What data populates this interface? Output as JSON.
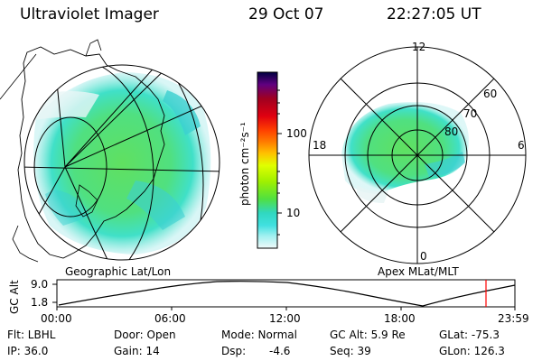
{
  "header": {
    "title": "Ultraviolet Imager",
    "date": "29 Oct 07",
    "time": "22:27:05 UT"
  },
  "maps": {
    "left_caption": "Geographic Lat/Lon",
    "right_caption": "Apex MLat/MLT",
    "polar_mlt_labels": [
      "12",
      "18",
      "6",
      "0"
    ],
    "polar_lat_labels": [
      "60",
      "70",
      "80"
    ]
  },
  "colorbar": {
    "unit_label": "photon cm⁻²s⁻¹",
    "tick_labels": [
      "100",
      "10"
    ],
    "colors": [
      "#000040",
      "#600080",
      "#a00020",
      "#e00010",
      "#ff4000",
      "#ff8000",
      "#ffc000",
      "#e0ff00",
      "#a0f000",
      "#50e040",
      "#30d8c0",
      "#40e0e0",
      "#a0f0f0",
      "#e0f8f8"
    ]
  },
  "altitude_plot": {
    "ylabel": "GC Alt",
    "y_ticks": [
      "9.0",
      "1.8"
    ],
    "x_ticks": [
      "00:00",
      "06:00",
      "12:00",
      "18:00",
      "23:59"
    ],
    "marker_color": "#ff0000",
    "series_color": "#000000"
  },
  "status": {
    "filter": "Flt: LBHL",
    "ip": "IP: 36.0",
    "door": "Door: Open",
    "gain": "Gain: 14",
    "mode": "Mode: Normal",
    "dsp_label": "Dsp:",
    "dsp_value": "-4.6",
    "gc_alt": "GC Alt: 5.9 Re",
    "seq": "Seq: 39",
    "glat": "GLat: -75.3",
    "glon": "GLon: 126.3"
  }
}
